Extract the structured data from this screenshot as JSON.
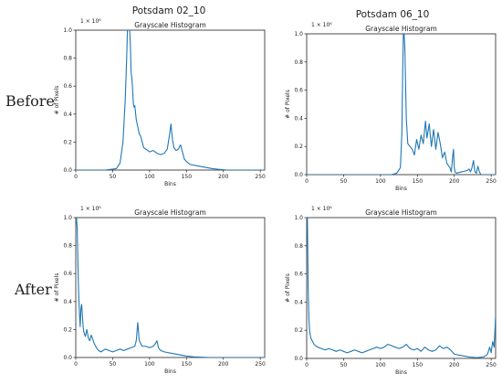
{
  "figure": {
    "col_titles": [
      "Potsdam 02_10",
      "Potsdam 06_10"
    ],
    "row_labels": [
      "Before",
      "After"
    ]
  },
  "chart_data": [
    {
      "type": "line",
      "title": "Grayscale Histogram",
      "xlabel": "Bins",
      "ylabel": "# of Pixels",
      "scale_label": "1 × 10⁶",
      "xlim": [
        0,
        256
      ],
      "ylim": [
        0,
        1.0
      ],
      "xticks": [
        "0",
        "50",
        "100",
        "150",
        "200",
        "250"
      ],
      "yticks": [
        "0.0",
        "0.2",
        "0.4",
        "0.6",
        "0.8",
        "1.0"
      ],
      "line_color": "#1f77b4",
      "x": [
        0,
        40,
        55,
        60,
        64,
        67,
        69,
        70,
        71,
        72,
        73,
        74,
        75,
        76,
        77,
        78,
        79,
        80,
        82,
        84,
        86,
        88,
        90,
        92,
        95,
        100,
        105,
        110,
        115,
        120,
        124,
        127,
        129,
        131,
        133,
        136,
        139,
        142,
        145,
        147,
        150,
        155,
        165,
        175,
        185,
        195,
        205,
        256
      ],
      "y": [
        0,
        0,
        0.01,
        0.05,
        0.2,
        0.5,
        0.8,
        1.0,
        1.0,
        1.0,
        1.0,
        0.9,
        0.7,
        0.66,
        0.58,
        0.48,
        0.45,
        0.46,
        0.36,
        0.31,
        0.26,
        0.24,
        0.2,
        0.16,
        0.15,
        0.13,
        0.14,
        0.12,
        0.11,
        0.12,
        0.15,
        0.25,
        0.33,
        0.22,
        0.16,
        0.14,
        0.15,
        0.18,
        0.12,
        0.08,
        0.06,
        0.04,
        0.03,
        0.02,
        0.01,
        0.005,
        0,
        0
      ]
    },
    {
      "type": "line",
      "title": "Grayscale Histogram",
      "xlabel": "Bins",
      "ylabel": "# of Pixels",
      "scale_label": "1 × 10⁶",
      "xlim": [
        0,
        256
      ],
      "ylim": [
        0,
        1.0
      ],
      "xticks": [
        "0",
        "50",
        "100",
        "150",
        "200",
        "250"
      ],
      "yticks": [
        "0.0",
        "0.2",
        "0.4",
        "0.6",
        "0.8",
        "1.0"
      ],
      "line_color": "#1f77b4",
      "x": [
        0,
        115,
        122,
        127,
        129,
        130,
        131,
        132,
        133,
        135,
        137,
        140,
        143,
        146,
        149,
        152,
        155,
        158,
        161,
        163,
        166,
        169,
        172,
        175,
        178,
        181,
        184,
        187,
        190,
        194,
        196,
        198,
        199,
        200,
        201,
        203,
        210,
        218,
        220,
        222,
        224,
        226,
        228,
        230,
        232,
        234,
        236,
        256
      ],
      "y": [
        0,
        0,
        0.01,
        0.05,
        0.3,
        0.7,
        1.0,
        1.0,
        0.9,
        0.4,
        0.22,
        0.2,
        0.18,
        0.14,
        0.25,
        0.18,
        0.28,
        0.22,
        0.38,
        0.26,
        0.36,
        0.2,
        0.32,
        0.18,
        0.3,
        0.22,
        0.12,
        0.16,
        0.08,
        0.05,
        0.02,
        0.14,
        0.18,
        0.05,
        0.02,
        0.01,
        0.02,
        0.03,
        0.04,
        0.02,
        0.05,
        0.1,
        0.02,
        0.01,
        0.06,
        0.02,
        0,
        0
      ]
    },
    {
      "type": "line",
      "title": "Grayscale Histogram",
      "xlabel": "Bins",
      "ylabel": "# of Pixels",
      "scale_label": "1 × 10⁶",
      "xlim": [
        0,
        256
      ],
      "ylim": [
        0,
        1.0
      ],
      "xticks": [
        "0",
        "50",
        "100",
        "150",
        "200",
        "250"
      ],
      "yticks": [
        "0.0",
        "0.2",
        "0.4",
        "0.6",
        "0.8",
        "1.0"
      ],
      "line_color": "#1f77b4",
      "x": [
        0,
        1,
        2,
        3,
        4,
        5,
        6,
        7,
        8,
        9,
        10,
        11,
        13,
        15,
        17,
        19,
        21,
        23,
        25,
        28,
        31,
        34,
        37,
        40,
        45,
        50,
        55,
        60,
        65,
        70,
        75,
        80,
        82,
        84,
        86,
        88,
        90,
        95,
        100,
        105,
        108,
        110,
        112,
        115,
        120,
        130,
        140,
        150,
        160,
        170,
        180,
        256
      ],
      "y": [
        0.95,
        1.0,
        0.92,
        0.65,
        0.45,
        0.32,
        0.22,
        0.35,
        0.38,
        0.3,
        0.22,
        0.18,
        0.15,
        0.2,
        0.14,
        0.12,
        0.16,
        0.13,
        0.1,
        0.07,
        0.05,
        0.04,
        0.05,
        0.06,
        0.05,
        0.04,
        0.05,
        0.06,
        0.05,
        0.06,
        0.07,
        0.08,
        0.12,
        0.25,
        0.12,
        0.1,
        0.08,
        0.08,
        0.07,
        0.08,
        0.1,
        0.12,
        0.07,
        0.05,
        0.04,
        0.03,
        0.02,
        0.01,
        0.005,
        0.002,
        0,
        0
      ]
    },
    {
      "type": "line",
      "title": "Grayscale Histogram",
      "xlabel": "Bins",
      "ylabel": "# of Pixels",
      "scale_label": "1 × 10⁶",
      "xlim": [
        0,
        256
      ],
      "ylim": [
        0,
        1.0
      ],
      "xticks": [
        "0",
        "50",
        "100",
        "150",
        "200",
        "250"
      ],
      "yticks": [
        "0.0",
        "0.2",
        "0.4",
        "0.6",
        "0.8",
        "1.0"
      ],
      "line_color": "#1f77b4",
      "x": [
        0,
        1,
        2,
        3,
        4,
        5,
        6,
        8,
        10,
        12,
        15,
        20,
        25,
        30,
        35,
        40,
        45,
        50,
        55,
        60,
        65,
        70,
        75,
        80,
        85,
        90,
        95,
        100,
        105,
        110,
        115,
        120,
        125,
        130,
        135,
        140,
        145,
        150,
        155,
        160,
        165,
        170,
        175,
        180,
        185,
        190,
        195,
        200,
        210,
        220,
        230,
        240,
        245,
        248,
        250,
        252,
        254,
        256
      ],
      "y": [
        1.0,
        1.0,
        0.5,
        0.28,
        0.2,
        0.16,
        0.14,
        0.12,
        0.1,
        0.09,
        0.08,
        0.07,
        0.06,
        0.07,
        0.06,
        0.05,
        0.06,
        0.05,
        0.04,
        0.05,
        0.06,
        0.05,
        0.04,
        0.05,
        0.06,
        0.07,
        0.08,
        0.07,
        0.08,
        0.1,
        0.09,
        0.08,
        0.07,
        0.08,
        0.1,
        0.07,
        0.06,
        0.07,
        0.05,
        0.08,
        0.06,
        0.05,
        0.06,
        0.09,
        0.07,
        0.08,
        0.06,
        0.03,
        0.02,
        0.01,
        0.005,
        0.01,
        0.03,
        0.08,
        0.04,
        0.12,
        0.08,
        0.3
      ]
    }
  ]
}
